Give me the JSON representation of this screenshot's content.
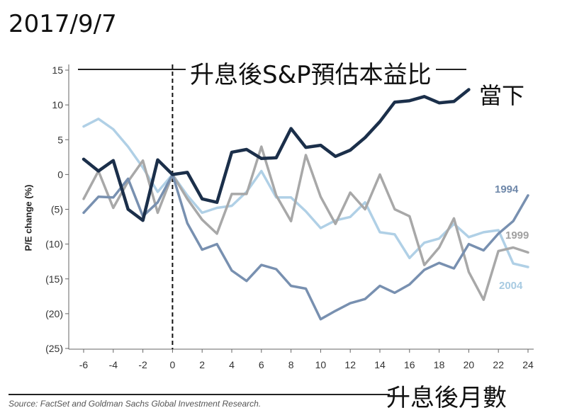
{
  "header": {
    "date": "2017/9/7",
    "title": "升息後S&P預估本益比",
    "xlabel_zh": "升息後月數",
    "source": "Source: FactSet and Goldman Sachs Global Investment Research."
  },
  "chart_data": {
    "type": "line",
    "title": "升息後S&P預估本益比",
    "xlabel": "升息後月數",
    "ylabel": "P/E change (%)",
    "xlim": [
      -6,
      24
    ],
    "ylim": [
      -25,
      15
    ],
    "xticks": [
      -6,
      -4,
      -2,
      0,
      2,
      4,
      6,
      8,
      10,
      12,
      14,
      16,
      18,
      20,
      22,
      24
    ],
    "yticks": [
      15,
      10,
      5,
      0,
      -5,
      -10,
      -15,
      -20,
      -25
    ],
    "ytick_labels": [
      "15",
      "10",
      "5",
      "0",
      "(5)",
      "(10)",
      "(15)",
      "(20)",
      "(25)"
    ],
    "vline_x": 0,
    "series": [
      {
        "name": "當下",
        "color": "#1b2f4a",
        "width": 4.5,
        "x": [
          -6,
          -5,
          -4,
          -3,
          -2,
          -1,
          0,
          1,
          2,
          3,
          4,
          5,
          6,
          7,
          8,
          9,
          10,
          11,
          12,
          13,
          14,
          15,
          16,
          17,
          18,
          19,
          20
        ],
        "y": [
          2.2,
          0.5,
          2.0,
          -5.0,
          -6.6,
          2.1,
          0.0,
          0.3,
          -3.5,
          -4.0,
          3.2,
          3.6,
          2.3,
          2.4,
          6.6,
          3.9,
          4.2,
          2.6,
          3.5,
          5.3,
          7.6,
          10.4,
          10.6,
          11.2,
          10.3,
          10.5,
          12.2
        ]
      },
      {
        "name": "1994",
        "color": "#7890b0",
        "width": 3.5,
        "x": [
          -6,
          -5,
          -4,
          -3,
          -2,
          -1,
          0,
          1,
          2,
          3,
          4,
          5,
          6,
          7,
          8,
          9,
          10,
          11,
          12,
          13,
          14,
          15,
          16,
          17,
          18,
          19,
          20,
          21,
          22,
          23,
          24
        ],
        "y": [
          -5.5,
          -3.2,
          -3.3,
          -0.6,
          -6.0,
          -4.0,
          0.0,
          -7.0,
          -10.8,
          -10.0,
          -13.8,
          -15.3,
          -13.0,
          -13.6,
          -16.0,
          -16.4,
          -20.8,
          -19.6,
          -18.5,
          -17.9,
          -16.0,
          -17.0,
          -15.8,
          -13.7,
          -12.7,
          -13.5,
          -10.0,
          -10.9,
          -8.5,
          -6.7,
          -3.0
        ]
      },
      {
        "name": "1999",
        "color": "#a8a8a8",
        "width": 3.5,
        "x": [
          -6,
          -5,
          -4,
          -3,
          -2,
          -1,
          0,
          1,
          2,
          3,
          4,
          5,
          6,
          7,
          8,
          9,
          10,
          11,
          12,
          13,
          14,
          15,
          16,
          17,
          18,
          19,
          20,
          21,
          22,
          23,
          24
        ],
        "y": [
          -3.5,
          0.5,
          -4.8,
          -1.0,
          2.0,
          -5.5,
          0.0,
          -3.5,
          -6.5,
          -8.5,
          -2.8,
          -2.8,
          4.0,
          -3.0,
          -6.7,
          2.8,
          -3.2,
          -7.1,
          -2.6,
          -5.0,
          0.0,
          -5.0,
          -6.0,
          -13.0,
          -10.5,
          -6.3,
          -14.0,
          -18.0,
          -11.0,
          -10.5,
          -11.2
        ]
      },
      {
        "name": "2004",
        "color": "#b0d0e6",
        "width": 3.5,
        "x": [
          -6,
          -5,
          -4,
          -3,
          -2,
          -1,
          0,
          1,
          2,
          3,
          4,
          5,
          6,
          7,
          8,
          9,
          10,
          11,
          12,
          13,
          14,
          15,
          16,
          17,
          18,
          19,
          20,
          21,
          22,
          23,
          24
        ],
        "y": [
          6.9,
          8.0,
          6.5,
          4.0,
          1.0,
          -2.5,
          0.0,
          -3.0,
          -5.5,
          -4.8,
          -4.5,
          -2.5,
          0.5,
          -3.3,
          -3.3,
          -5.3,
          -7.7,
          -6.6,
          -6.1,
          -4.0,
          -8.3,
          -8.6,
          -12.0,
          -9.8,
          -9.2,
          -7.1,
          -9.0,
          -8.3,
          -8.0,
          -12.8,
          -13.3
        ]
      }
    ]
  }
}
